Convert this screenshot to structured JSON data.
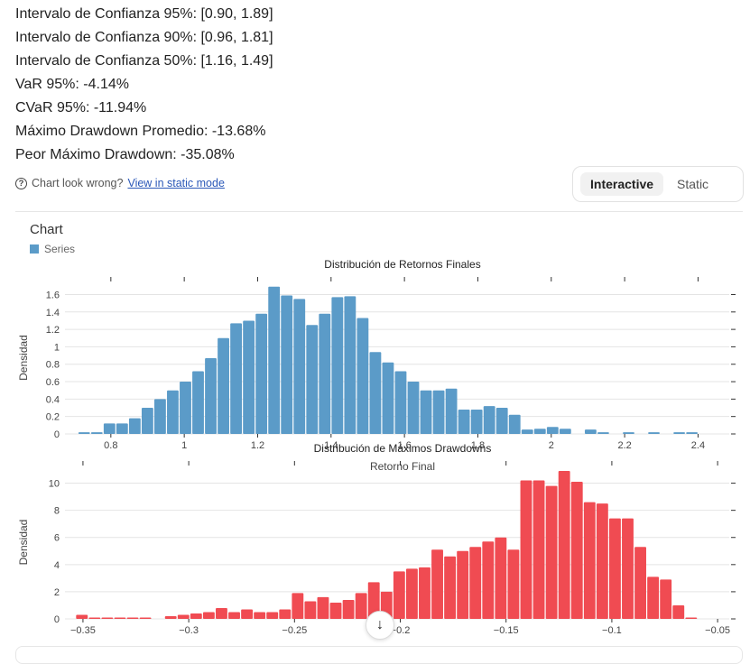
{
  "stats": [
    "Intervalo de Confianza 95%: [0.90, 1.89]",
    "Intervalo de Confianza 90%: [0.96, 1.81]",
    "Intervalo de Confianza 50%: [1.16, 1.49]",
    "VaR 95%: -4.14%",
    "CVaR 95%: -11.94%",
    "Máximo Drawdown Promedio: -13.68%",
    "Peor Máximo Drawdown: -35.08%"
  ],
  "help": {
    "icon": "question-circle-icon",
    "text": "Chart look wrong?",
    "link": "View in static mode"
  },
  "toggle": {
    "interactive": "Interactive",
    "static": "Static",
    "selected": "Interactive"
  },
  "chart_header": {
    "title": "Chart",
    "legend": "Series"
  },
  "scroll_icon": "arrow-down-icon",
  "chart_data": [
    {
      "type": "bar",
      "title": "Distribución de Retornos Finales",
      "xlabel": "Retorno Final",
      "ylabel": "Densidad",
      "color": "#5b9bc8",
      "xlim": [
        0.675,
        2.485
      ],
      "ylim": [
        0,
        1.75
      ],
      "xticks": [
        0.8,
        1,
        1.2,
        1.4,
        1.6,
        1.8,
        2,
        2.2,
        2.4
      ],
      "xtick_labels": [
        "0.8",
        "1",
        "1.2",
        "1.4",
        "1.6",
        "1.8",
        "2",
        "2.2",
        "2.4"
      ],
      "yticks": [
        0,
        0.2,
        0.4,
        0.6,
        0.8,
        1,
        1.2,
        1.4,
        1.6
      ],
      "ytick_labels": [
        "0",
        "0.2",
        "0.4",
        "0.6",
        "0.8",
        "1",
        "1.2",
        "1.4",
        "1.6"
      ],
      "bin_start": 0.71,
      "bin_width": 0.0345,
      "values": [
        0.02,
        0.02,
        0.12,
        0.12,
        0.18,
        0.3,
        0.4,
        0.5,
        0.6,
        0.72,
        0.87,
        1.1,
        1.27,
        1.3,
        1.38,
        1.69,
        1.59,
        1.55,
        1.25,
        1.38,
        1.57,
        1.58,
        1.33,
        0.94,
        0.82,
        0.72,
        0.6,
        0.5,
        0.5,
        0.52,
        0.28,
        0.28,
        0.32,
        0.3,
        0.22,
        0.05,
        0.06,
        0.08,
        0.06,
        0,
        0.05,
        0.02,
        0,
        0.02,
        0,
        0.02,
        0,
        0.02,
        0.02
      ]
    },
    {
      "type": "bar",
      "title": "Distribución de Máximos Drawdowns",
      "xlabel": "",
      "ylabel": "Densidad",
      "color": "#f04b52",
      "xlim": [
        -0.3585,
        -0.0445
      ],
      "ylim": [
        0,
        11.3
      ],
      "xticks": [
        -0.35,
        -0.3,
        -0.25,
        -0.2,
        -0.15,
        -0.1,
        -0.05
      ],
      "xtick_labels": [
        "−0.35",
        "−0.3",
        "−0.25",
        "−0.2",
        "−0.15",
        "−0.1",
        "−0.05"
      ],
      "yticks": [
        0,
        2,
        4,
        6,
        8,
        10
      ],
      "ytick_labels": [
        "0",
        "2",
        "4",
        "6",
        "8",
        "10"
      ],
      "bin_start": -0.3535,
      "bin_width": 0.006,
      "values": [
        0.3,
        0.1,
        0.1,
        0.1,
        0.1,
        0.1,
        0,
        0.2,
        0.3,
        0.4,
        0.5,
        0.8,
        0.5,
        0.7,
        0.5,
        0.5,
        0.7,
        1.9,
        1.3,
        1.6,
        1.2,
        1.4,
        1.9,
        2.7,
        2.0,
        3.5,
        3.7,
        3.8,
        5.1,
        4.6,
        5.0,
        5.3,
        5.7,
        6.0,
        5.1,
        10.2,
        10.2,
        9.8,
        10.9,
        10.1,
        8.6,
        8.5,
        7.4,
        7.4,
        5.3,
        3.1,
        2.9,
        1.0,
        0.1
      ]
    }
  ]
}
